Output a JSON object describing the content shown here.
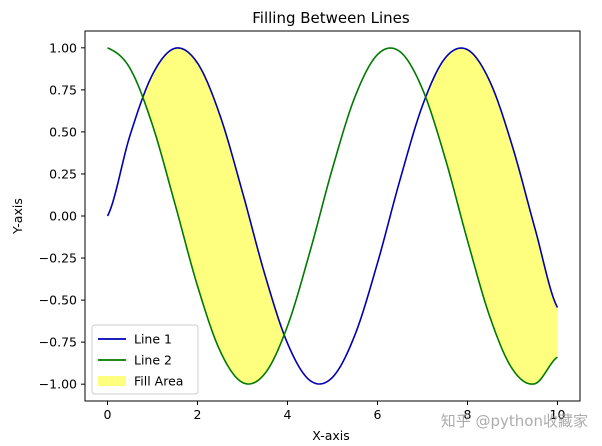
{
  "chart_data": {
    "type": "line",
    "title": "Filling Between Lines",
    "xlabel": "X-axis",
    "ylabel": "Y-axis",
    "xlim": [
      -0.5,
      10.5
    ],
    "ylim": [
      -1.1,
      1.1
    ],
    "x_ticks": [
      0,
      2,
      4,
      6,
      8,
      10
    ],
    "x_tick_labels": [
      "0",
      "2",
      "4",
      "6",
      "8",
      "10"
    ],
    "y_ticks": [
      -1.0,
      -0.75,
      -0.5,
      -0.25,
      0.0,
      0.25,
      0.5,
      0.75,
      1.0
    ],
    "y_tick_labels": [
      "−1.00",
      "−0.75",
      "−0.50",
      "−0.25",
      "0.00",
      "0.25",
      "0.50",
      "0.75",
      "1.00"
    ],
    "grid": false,
    "legend_placement": "lower-left",
    "x": [
      0.0,
      0.5,
      1.0,
      1.5,
      2.0,
      2.5,
      3.0,
      3.5,
      4.0,
      4.5,
      5.0,
      5.5,
      6.0,
      6.5,
      7.0,
      7.5,
      8.0,
      8.5,
      9.0,
      9.5,
      10.0
    ],
    "series": [
      {
        "name": "Line 1",
        "color": "#0000b3",
        "values": [
          0.0,
          0.479,
          0.841,
          0.997,
          0.909,
          0.598,
          0.141,
          -0.351,
          -0.757,
          -0.978,
          -0.959,
          -0.706,
          -0.279,
          0.215,
          0.657,
          0.938,
          0.989,
          0.798,
          0.412,
          -0.075,
          -0.544
        ]
      },
      {
        "name": "Line 2",
        "color": "#007a00",
        "values": [
          1.0,
          0.878,
          0.54,
          0.071,
          -0.416,
          -0.801,
          -0.99,
          -0.936,
          -0.654,
          -0.211,
          0.284,
          0.709,
          0.96,
          0.977,
          0.754,
          0.347,
          -0.146,
          -0.602,
          -0.911,
          -0.997,
          -0.839
        ]
      }
    ],
    "fill": {
      "name": "Fill Area",
      "color": "#ffff00",
      "alpha": 0.5,
      "where": "Line 1 > Line 2"
    },
    "watermark": "知乎 @python收藏家"
  }
}
